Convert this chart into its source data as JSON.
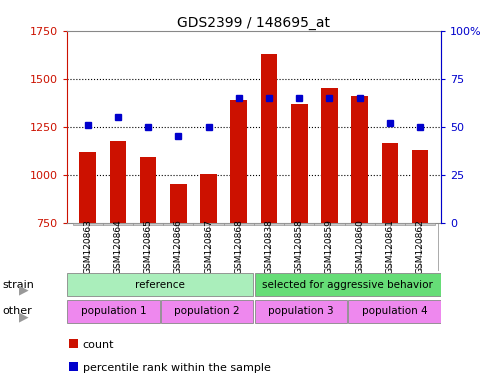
{
  "title": "GDS2399 / 148695_at",
  "samples": [
    "GSM120863",
    "GSM120864",
    "GSM120865",
    "GSM120866",
    "GSM120867",
    "GSM120868",
    "GSM120838",
    "GSM120858",
    "GSM120859",
    "GSM120860",
    "GSM120861",
    "GSM120862"
  ],
  "counts": [
    1120,
    1175,
    1090,
    950,
    1005,
    1390,
    1630,
    1370,
    1450,
    1410,
    1165,
    1130
  ],
  "percentiles": [
    51,
    55,
    50,
    45,
    50,
    65,
    65,
    65,
    65,
    65,
    52,
    50
  ],
  "bar_color": "#cc1100",
  "dot_color": "#0000cc",
  "ymin": 750,
  "ymax": 1750,
  "y_ticks": [
    750,
    1000,
    1250,
    1500,
    1750
  ],
  "y2min": 0,
  "y2max": 100,
  "y2_ticks": [
    0,
    25,
    50,
    75,
    100
  ],
  "y2_tick_labels": [
    "0",
    "25",
    "50",
    "75",
    "100%"
  ],
  "strain_labels": [
    {
      "text": "reference",
      "start": 0,
      "end": 5,
      "color": "#aaeebb"
    },
    {
      "text": "selected for aggressive behavior",
      "start": 6,
      "end": 11,
      "color": "#66dd77"
    }
  ],
  "other_labels": [
    {
      "text": "population 1",
      "start": 0,
      "end": 2,
      "color": "#ee88ee"
    },
    {
      "text": "population 2",
      "start": 3,
      "end": 5,
      "color": "#ee88ee"
    },
    {
      "text": "population 3",
      "start": 6,
      "end": 8,
      "color": "#ee88ee"
    },
    {
      "text": "population 4",
      "start": 9,
      "end": 11,
      "color": "#ee88ee"
    }
  ],
  "legend_count_label": "count",
  "legend_pct_label": "percentile rank within the sample",
  "strain_row_label": "strain",
  "other_row_label": "other",
  "bg_color": "#ffffff",
  "plot_bg": "#ffffff",
  "xtick_bg": "#cccccc",
  "border_color": "#888888"
}
